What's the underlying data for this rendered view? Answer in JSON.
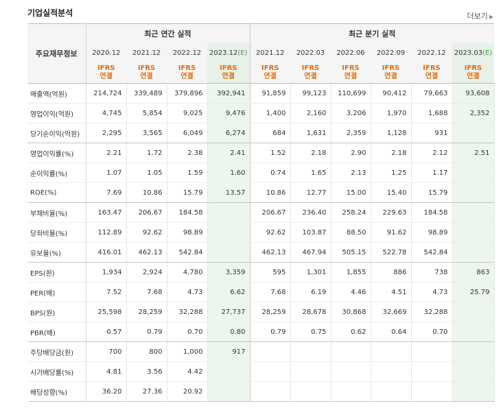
{
  "page": {
    "title": "기업실적분석",
    "more_label": "더보기"
  },
  "header": {
    "label_col": "주요재무정보",
    "annual_group": "최근 연간 실적",
    "quarterly_group": "최근 분기 실적",
    "annual_periods": [
      "2020.12",
      "2021.12",
      "2022.12",
      "2023.12"
    ],
    "quarterly_periods": [
      "2021.12",
      "2022.03",
      "2022.06",
      "2022.09",
      "2022.12",
      "2023.03"
    ],
    "estimate_tag": "(E)",
    "ifrs_line1": "IFRS",
    "ifrs_line2": "연결"
  },
  "rows": [
    {
      "label": "매출액(억원)",
      "annual": [
        "214,724",
        "339,489",
        "379,896",
        "392,941"
      ],
      "quarterly": [
        "91,859",
        "99,123",
        "110,699",
        "90,412",
        "79,663",
        "93,608"
      ]
    },
    {
      "label": "영업이익(억원)",
      "annual": [
        "4,745",
        "5,854",
        "9,025",
        "9,476"
      ],
      "quarterly": [
        "1,400",
        "2,160",
        "3,206",
        "1,970",
        "1,688",
        "2,352"
      ]
    },
    {
      "label": "당기순이익(억원)",
      "annual": [
        "2,295",
        "3,565",
        "6,049",
        "6,274"
      ],
      "quarterly": [
        "684",
        "1,631",
        "2,359",
        "1,128",
        "931",
        ""
      ]
    },
    {
      "label": "영업이익률(%)",
      "annual": [
        "2.21",
        "1.72",
        "2.38",
        "2.41"
      ],
      "quarterly": [
        "1.52",
        "2.18",
        "2.90",
        "2.18",
        "2.12",
        "2.51"
      ]
    },
    {
      "label": "순이익률(%)",
      "annual": [
        "1.07",
        "1.05",
        "1.59",
        "1.60"
      ],
      "quarterly": [
        "0.74",
        "1.65",
        "2.13",
        "1.25",
        "1.17",
        ""
      ]
    },
    {
      "label": "ROE(%)",
      "annual": [
        "7.69",
        "10.86",
        "15.79",
        "13.57"
      ],
      "quarterly": [
        "10.86",
        "12.77",
        "15.00",
        "15.40",
        "15.79",
        ""
      ]
    },
    {
      "label": "부채비율(%)",
      "annual": [
        "163.47",
        "206.67",
        "184.58",
        ""
      ],
      "quarterly": [
        "206.67",
        "236.40",
        "258.24",
        "229.63",
        "184.58",
        ""
      ]
    },
    {
      "label": "당좌비율(%)",
      "annual": [
        "112.89",
        "92.62",
        "98.89",
        ""
      ],
      "quarterly": [
        "92.62",
        "103.87",
        "88.50",
        "91.62",
        "98.89",
        ""
      ]
    },
    {
      "label": "유보율(%)",
      "annual": [
        "416.01",
        "462.13",
        "542.84",
        ""
      ],
      "quarterly": [
        "462.13",
        "467.94",
        "505.15",
        "522.78",
        "542.84",
        ""
      ]
    },
    {
      "label": "EPS(원)",
      "annual": [
        "1,934",
        "2,924",
        "4,780",
        "3,359"
      ],
      "quarterly": [
        "595",
        "1,301",
        "1,855",
        "886",
        "738",
        "863"
      ]
    },
    {
      "label": "PER(배)",
      "annual": [
        "7.52",
        "7.68",
        "4.73",
        "6.62"
      ],
      "quarterly": [
        "7.68",
        "6.19",
        "4.46",
        "4.51",
        "4.73",
        "25.79"
      ]
    },
    {
      "label": "BPS(원)",
      "annual": [
        "25,598",
        "28,259",
        "32,288",
        "27,737"
      ],
      "quarterly": [
        "28,259",
        "28,678",
        "30,868",
        "32,669",
        "32,288",
        ""
      ]
    },
    {
      "label": "PBR(배)",
      "annual": [
        "0.57",
        "0.79",
        "0.70",
        "0.80"
      ],
      "quarterly": [
        "0.79",
        "0.75",
        "0.62",
        "0.64",
        "0.70",
        ""
      ]
    },
    {
      "label": "주당배당금(원)",
      "annual": [
        "700",
        "800",
        "1,000",
        "917"
      ],
      "quarterly": [
        "",
        "",
        "",
        "",
        "",
        ""
      ]
    },
    {
      "label": "시가배당률(%)",
      "annual": [
        "4.81",
        "3.56",
        "4.42",
        ""
      ],
      "quarterly": [
        "",
        "",
        "",
        "",
        "",
        ""
      ]
    },
    {
      "label": "배당성향(%)",
      "annual": [
        "36.20",
        "27.36",
        "20.92",
        ""
      ],
      "quarterly": [
        "",
        "",
        "",
        "",
        "",
        ""
      ]
    }
  ]
}
